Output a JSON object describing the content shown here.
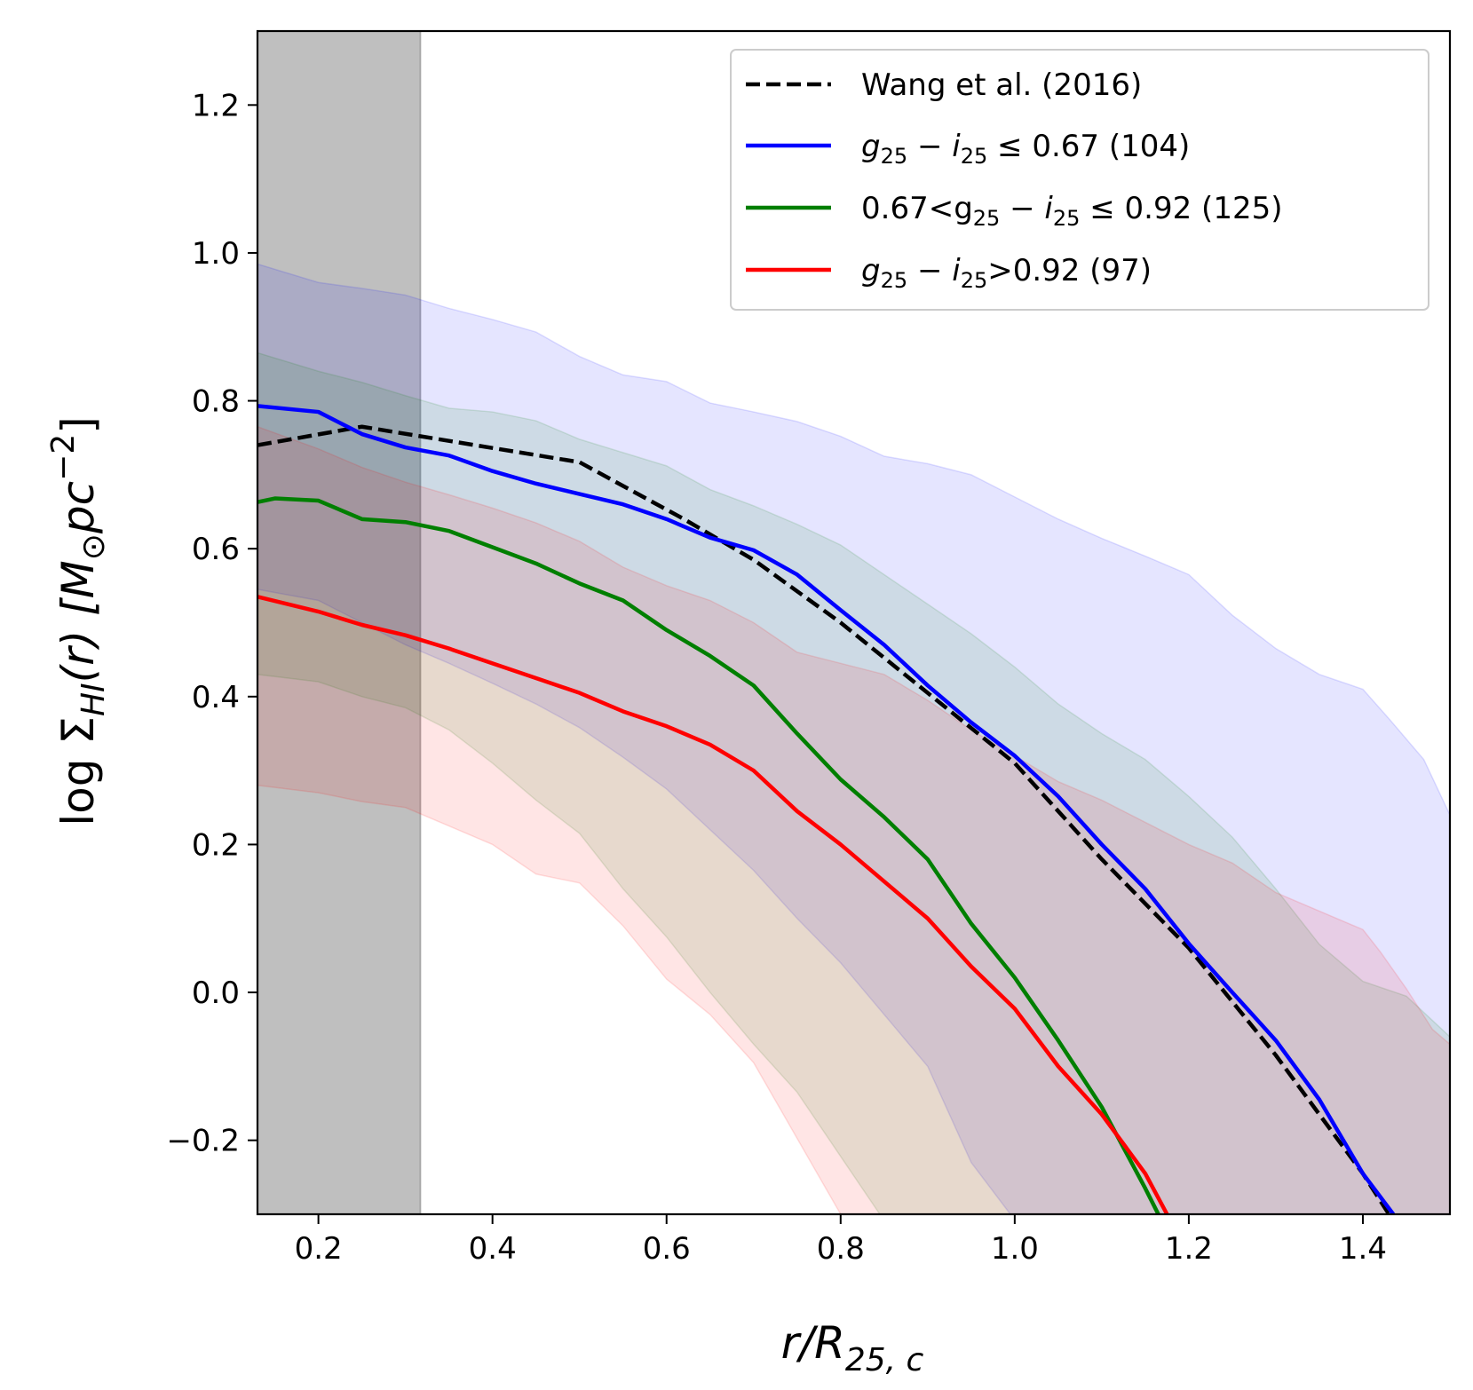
{
  "chart_data": {
    "type": "line",
    "xlabel_parts": {
      "base": "r/R",
      "sub": "25, c"
    },
    "ylabel_parts": {
      "pre": "log Σ",
      "sub": "HI",
      "mid": "(r) [M",
      "sub2": "⊙",
      "post": "pc",
      "sup": "−2",
      "end": "]"
    },
    "xlim": [
      0.13,
      1.5
    ],
    "ylim": [
      -0.3,
      1.3
    ],
    "xticks": [
      0.2,
      0.4,
      0.6,
      0.8,
      1.0,
      1.2,
      1.4
    ],
    "xtick_labels": [
      "0.2",
      "0.4",
      "0.6",
      "0.8",
      "1.0",
      "1.2",
      "1.4"
    ],
    "yticks": [
      -0.2,
      0.0,
      0.2,
      0.4,
      0.6,
      0.8,
      1.0,
      1.2
    ],
    "ytick_labels": [
      "−0.2",
      "0.0",
      "0.2",
      "0.4",
      "0.6",
      "0.8",
      "1.0",
      "1.2"
    ],
    "shaded_region": {
      "x0": 0.13,
      "x1": 0.317,
      "color": "#bfbfbf"
    },
    "legend_position": "top-right",
    "series": [
      {
        "name": "Wang et al. (2016)",
        "legend_label": "Wang et al. (2016)",
        "color": "#000000",
        "dashed": true,
        "x": [
          0.13,
          0.25,
          0.5,
          0.62,
          0.7,
          0.8,
          0.9,
          1.0,
          1.1,
          1.2,
          1.3,
          1.4,
          1.43
        ],
        "y": [
          0.74,
          0.765,
          0.717,
          0.64,
          0.585,
          0.5,
          0.405,
          0.31,
          0.18,
          0.06,
          -0.085,
          -0.245,
          -0.3
        ]
      },
      {
        "name": "blue",
        "legend_label": {
          "pre": "g",
          "sub1": "25",
          "mid": " − i",
          "sub2": "25",
          "post": " ≤ 0.67 (104)"
        },
        "color": "#0000ff",
        "dashed": false,
        "x": [
          0.13,
          0.2,
          0.25,
          0.3,
          0.35,
          0.4,
          0.45,
          0.5,
          0.55,
          0.6,
          0.65,
          0.7,
          0.75,
          0.8,
          0.85,
          0.9,
          0.95,
          1.0,
          1.05,
          1.1,
          1.15,
          1.2,
          1.25,
          1.3,
          1.35,
          1.4,
          1.435
        ],
        "y": [
          0.793,
          0.785,
          0.755,
          0.737,
          0.726,
          0.705,
          0.688,
          0.674,
          0.66,
          0.64,
          0.615,
          0.598,
          0.565,
          0.517,
          0.47,
          0.415,
          0.365,
          0.32,
          0.265,
          0.2,
          0.14,
          0.066,
          0.0,
          -0.065,
          -0.145,
          -0.245,
          -0.3
        ],
        "band_upper": [
          0.985,
          0.96,
          0.952,
          0.943,
          0.925,
          0.91,
          0.893,
          0.86,
          0.835,
          0.826,
          0.797,
          0.785,
          0.772,
          0.752,
          0.725,
          0.715,
          0.7,
          0.67,
          0.64,
          0.614,
          0.59,
          0.565,
          0.51,
          0.465,
          0.43,
          0.41,
          0.37,
          0.315,
          0.24
        ],
        "band_lower": [
          0.545,
          0.53,
          0.5,
          0.47,
          0.445,
          0.418,
          0.39,
          0.358,
          0.318,
          0.275,
          0.22,
          0.165,
          0.1,
          0.04,
          -0.03,
          -0.1,
          -0.23,
          -0.3
        ],
        "band_x_upper": [
          0.13,
          0.2,
          0.25,
          0.3,
          0.35,
          0.4,
          0.45,
          0.5,
          0.55,
          0.6,
          0.65,
          0.7,
          0.75,
          0.8,
          0.85,
          0.9,
          0.95,
          1.0,
          1.05,
          1.1,
          1.15,
          1.2,
          1.25,
          1.3,
          1.35,
          1.4,
          1.43,
          1.47,
          1.5
        ],
        "band_x_lower": [
          0.13,
          0.2,
          0.25,
          0.3,
          0.35,
          0.4,
          0.45,
          0.5,
          0.55,
          0.6,
          0.65,
          0.7,
          0.75,
          0.8,
          0.85,
          0.9,
          0.95,
          0.995
        ]
      },
      {
        "name": "green",
        "legend_label": {
          "pre": "0.67<g",
          "sub1": "25",
          "mid": " − i",
          "sub2": "25",
          "post": " ≤ 0.92 (125)"
        },
        "color": "#007f00",
        "dashed": false,
        "x": [
          0.13,
          0.15,
          0.2,
          0.25,
          0.3,
          0.35,
          0.4,
          0.45,
          0.5,
          0.55,
          0.6,
          0.65,
          0.7,
          0.75,
          0.8,
          0.85,
          0.9,
          0.95,
          1.0,
          1.05,
          1.1,
          1.15,
          1.165
        ],
        "y": [
          0.663,
          0.668,
          0.665,
          0.64,
          0.636,
          0.624,
          0.602,
          0.58,
          0.553,
          0.53,
          0.49,
          0.455,
          0.415,
          0.35,
          0.288,
          0.237,
          0.18,
          0.093,
          0.02,
          -0.065,
          -0.155,
          -0.265,
          -0.3
        ],
        "band_upper": [
          0.865,
          0.84,
          0.825,
          0.807,
          0.79,
          0.785,
          0.773,
          0.748,
          0.73,
          0.712,
          0.68,
          0.658,
          0.633,
          0.605,
          0.565,
          0.525,
          0.485,
          0.44,
          0.39,
          0.35,
          0.315,
          0.265,
          0.21,
          0.14,
          0.065,
          0.015,
          -0.005,
          -0.06
        ],
        "band_lower": [
          0.43,
          0.42,
          0.4,
          0.385,
          0.355,
          0.31,
          0.26,
          0.215,
          0.14,
          0.075,
          0.0,
          -0.07,
          -0.135,
          -0.3
        ],
        "band_x_upper": [
          0.13,
          0.2,
          0.25,
          0.3,
          0.35,
          0.4,
          0.45,
          0.5,
          0.55,
          0.6,
          0.65,
          0.7,
          0.75,
          0.8,
          0.85,
          0.9,
          0.95,
          1.0,
          1.05,
          1.1,
          1.15,
          1.2,
          1.25,
          1.3,
          1.35,
          1.4,
          1.45,
          1.5
        ],
        "band_x_lower": [
          0.13,
          0.2,
          0.25,
          0.3,
          0.35,
          0.4,
          0.45,
          0.5,
          0.55,
          0.6,
          0.65,
          0.7,
          0.75,
          0.845
        ]
      },
      {
        "name": "red",
        "legend_label": {
          "pre": "g",
          "sub1": "25",
          "mid": " − i",
          "sub2": "25",
          "post": ">0.92 (97)"
        },
        "color": "#ff0000",
        "dashed": false,
        "x": [
          0.13,
          0.2,
          0.25,
          0.3,
          0.35,
          0.4,
          0.45,
          0.5,
          0.55,
          0.6,
          0.65,
          0.7,
          0.75,
          0.8,
          0.85,
          0.9,
          0.95,
          1.0,
          1.05,
          1.1,
          1.15,
          1.175
        ],
        "y": [
          0.535,
          0.515,
          0.497,
          0.483,
          0.465,
          0.445,
          0.425,
          0.405,
          0.38,
          0.36,
          0.335,
          0.3,
          0.245,
          0.2,
          0.15,
          0.1,
          0.035,
          -0.022,
          -0.1,
          -0.165,
          -0.245,
          -0.3
        ],
        "band_upper": [
          0.765,
          0.735,
          0.71,
          0.69,
          0.673,
          0.655,
          0.635,
          0.61,
          0.575,
          0.55,
          0.53,
          0.5,
          0.46,
          0.445,
          0.43,
          0.395,
          0.355,
          0.32,
          0.285,
          0.26,
          0.23,
          0.2,
          0.175,
          0.135,
          0.11,
          0.085,
          0.055,
          0.005,
          -0.05,
          -0.07
        ],
        "band_lower": [
          0.28,
          0.27,
          0.258,
          0.25,
          0.225,
          0.2,
          0.16,
          0.148,
          0.09,
          0.018,
          -0.03,
          -0.095,
          -0.3
        ],
        "band_x_upper": [
          0.13,
          0.2,
          0.25,
          0.3,
          0.35,
          0.4,
          0.45,
          0.5,
          0.55,
          0.6,
          0.65,
          0.7,
          0.75,
          0.8,
          0.85,
          0.9,
          0.95,
          1.0,
          1.05,
          1.1,
          1.15,
          1.2,
          1.25,
          1.3,
          1.35,
          1.4,
          1.42,
          1.45,
          1.48,
          1.5
        ],
        "band_x_lower": [
          0.13,
          0.2,
          0.25,
          0.3,
          0.35,
          0.4,
          0.45,
          0.5,
          0.55,
          0.6,
          0.65,
          0.7,
          0.8
        ]
      }
    ]
  }
}
